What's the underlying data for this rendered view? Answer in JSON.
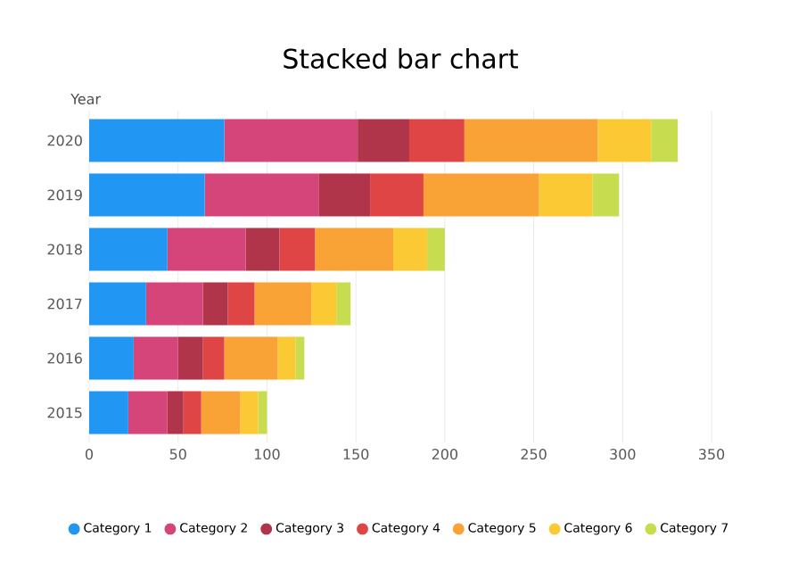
{
  "chart_data": {
    "type": "bar",
    "orientation": "horizontal",
    "stacked": true,
    "title": "Stacked bar chart",
    "ylabel": "Year",
    "categories": [
      "2020",
      "2019",
      "2018",
      "2017",
      "2016",
      "2015"
    ],
    "series": [
      {
        "name": "Category 1",
        "color": "#2196f3",
        "values": [
          76,
          65,
          44,
          32,
          25,
          22
        ]
      },
      {
        "name": "Category 2",
        "color": "#d6457a",
        "values": [
          75,
          64,
          44,
          32,
          25,
          22
        ]
      },
      {
        "name": "Category 3",
        "color": "#b0344a",
        "values": [
          29,
          29,
          19,
          14,
          14,
          9
        ]
      },
      {
        "name": "Category 4",
        "color": "#e04545",
        "values": [
          31,
          30,
          20,
          15,
          12,
          10
        ]
      },
      {
        "name": "Category 5",
        "color": "#f9a236",
        "values": [
          75,
          65,
          44,
          32,
          30,
          22
        ]
      },
      {
        "name": "Category 6",
        "color": "#fbc934",
        "values": [
          30,
          30,
          19,
          14,
          10,
          10
        ]
      },
      {
        "name": "Category 7",
        "color": "#c8dc50",
        "values": [
          15,
          15,
          10,
          8,
          5,
          5
        ]
      }
    ],
    "xlim": [
      0,
      350
    ],
    "xticks": [
      0,
      50,
      100,
      150,
      200,
      250,
      300,
      350
    ],
    "grid": "x",
    "legend": "bottom"
  }
}
